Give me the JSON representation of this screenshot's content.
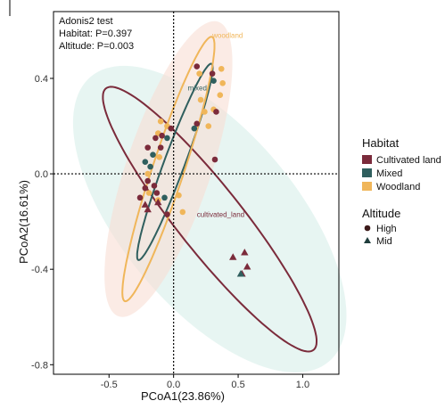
{
  "chart_data": {
    "type": "scatter",
    "xlabel": "PCoA1(23.86%)",
    "ylabel": "PCoA2(16.61%)",
    "xlim": [
      -0.93,
      1.28
    ],
    "ylim": [
      -0.84,
      0.68
    ],
    "x_ticks": [
      -0.5,
      0.0,
      0.5,
      1.0
    ],
    "y_ticks": [
      0.4,
      0.0,
      -0.4,
      -0.8
    ],
    "x_tick_labels": [
      "-0.5",
      "0.0",
      "0.5",
      "1.0"
    ],
    "y_tick_labels": [
      "0.4",
      "0.0",
      "-0.4",
      "-0.8"
    ],
    "annotations": {
      "line1": "Adonis2 test",
      "line2": "Habitat: P=0.397",
      "line3": "Altitude: P=0.003"
    },
    "legend_placement": "right",
    "legend": {
      "habitat_title": "Habitat",
      "habitat_items": [
        {
          "label": "Cultivated land",
          "color": "#7b2b3b"
        },
        {
          "label": "Mixed",
          "color": "#2f5f5e"
        },
        {
          "label": "Woodland",
          "color": "#f0b65a"
        }
      ],
      "altitude_title": "Altitude",
      "altitude_items": [
        {
          "label": "High",
          "shape": "circle"
        },
        {
          "label": "Mid",
          "shape": "triangle"
        }
      ]
    },
    "ellipse_labels": {
      "woodland": "woodland",
      "mixed": "mixed",
      "cultivated": "cultivated_land"
    },
    "ellipses": [
      {
        "group": "Cultivated land",
        "color": "#7b2b3b",
        "fill": "#d7eee9",
        "cx": 0.28,
        "cy": -0.19,
        "rx": 0.98,
        "ry": 0.18,
        "angle_deg": -33
      },
      {
        "group": "Mixed",
        "color": "#2f5f5e",
        "fill": null,
        "cx": 0.01,
        "cy": 0.05,
        "rx": 0.5,
        "ry": 0.07,
        "angle_deg": 55
      },
      {
        "group": "Woodland",
        "color": "#f0b65a",
        "fill": "#f9ddd3",
        "cx": -0.04,
        "cy": 0.02,
        "rx": 0.65,
        "ry": 0.11,
        "angle_deg": 58
      }
    ],
    "grid": false,
    "reference_lines": {
      "x": 0,
      "y": 0,
      "style": "dotted"
    },
    "points": [
      {
        "x": 0.18,
        "y": 0.45,
        "habitat": "Cultivated land",
        "altitude": "High"
      },
      {
        "x": 0.3,
        "y": 0.42,
        "habitat": "Cultivated land",
        "altitude": "High"
      },
      {
        "x": 0.37,
        "y": 0.44,
        "habitat": "Woodland",
        "altitude": "High"
      },
      {
        "x": 0.31,
        "y": 0.39,
        "habitat": "Mixed",
        "altitude": "High"
      },
      {
        "x": 0.2,
        "y": 0.42,
        "habitat": "Woodland",
        "altitude": "High"
      },
      {
        "x": 0.38,
        "y": 0.38,
        "habitat": "Woodland",
        "altitude": "High"
      },
      {
        "x": 0.36,
        "y": 0.33,
        "habitat": "Woodland",
        "altitude": "High"
      },
      {
        "x": 0.21,
        "y": 0.31,
        "habitat": "Woodland",
        "altitude": "High"
      },
      {
        "x": 0.24,
        "y": 0.26,
        "habitat": "Woodland",
        "altitude": "High"
      },
      {
        "x": 0.31,
        "y": 0.27,
        "habitat": "Woodland",
        "altitude": "High"
      },
      {
        "x": 0.33,
        "y": 0.26,
        "habitat": "Cultivated land",
        "altitude": "High"
      },
      {
        "x": 0.27,
        "y": 0.2,
        "habitat": "Woodland",
        "altitude": "High"
      },
      {
        "x": 0.18,
        "y": 0.21,
        "habitat": "Cultivated land",
        "altitude": "High"
      },
      {
        "x": 0.16,
        "y": 0.19,
        "habitat": "Mixed",
        "altitude": "High"
      },
      {
        "x": 0.32,
        "y": 0.06,
        "habitat": "Cultivated land",
        "altitude": "High"
      },
      {
        "x": -0.1,
        "y": 0.22,
        "habitat": "Woodland",
        "altitude": "High"
      },
      {
        "x": -0.05,
        "y": 0.2,
        "habitat": "Woodland",
        "altitude": "High"
      },
      {
        "x": -0.02,
        "y": 0.19,
        "habitat": "Cultivated land",
        "altitude": "High"
      },
      {
        "x": -0.12,
        "y": 0.17,
        "habitat": "Woodland",
        "altitude": "High"
      },
      {
        "x": -0.14,
        "y": 0.15,
        "habitat": "Cultivated land",
        "altitude": "High"
      },
      {
        "x": -0.09,
        "y": 0.16,
        "habitat": "Cultivated land",
        "altitude": "High"
      },
      {
        "x": -0.05,
        "y": 0.15,
        "habitat": "Mixed",
        "altitude": "High"
      },
      {
        "x": -0.2,
        "y": 0.11,
        "habitat": "Cultivated land",
        "altitude": "High"
      },
      {
        "x": -0.1,
        "y": 0.11,
        "habitat": "Cultivated land",
        "altitude": "High"
      },
      {
        "x": -0.16,
        "y": 0.08,
        "habitat": "Mixed",
        "altitude": "High"
      },
      {
        "x": -0.11,
        "y": 0.07,
        "habitat": "Woodland",
        "altitude": "High"
      },
      {
        "x": -0.22,
        "y": 0.05,
        "habitat": "Mixed",
        "altitude": "High"
      },
      {
        "x": -0.18,
        "y": 0.03,
        "habitat": "Mixed",
        "altitude": "High"
      },
      {
        "x": -0.2,
        "y": 0.0,
        "habitat": "Woodland",
        "altitude": "High"
      },
      {
        "x": -0.2,
        "y": -0.03,
        "habitat": "Cultivated land",
        "altitude": "High"
      },
      {
        "x": -0.15,
        "y": -0.05,
        "habitat": "Cultivated land",
        "altitude": "High"
      },
      {
        "x": -0.22,
        "y": -0.06,
        "habitat": "Cultivated land",
        "altitude": "High"
      },
      {
        "x": -0.19,
        "y": -0.08,
        "habitat": "Woodland",
        "altitude": "High"
      },
      {
        "x": -0.13,
        "y": -0.08,
        "habitat": "Cultivated land",
        "altitude": "High"
      },
      {
        "x": -0.26,
        "y": -0.1,
        "habitat": "Cultivated land",
        "altitude": "High"
      },
      {
        "x": -0.12,
        "y": -0.11,
        "habitat": "Woodland",
        "altitude": "High"
      },
      {
        "x": -0.07,
        "y": -0.1,
        "habitat": "Mixed",
        "altitude": "High"
      },
      {
        "x": 0.04,
        "y": -0.09,
        "habitat": "Woodland",
        "altitude": "High"
      },
      {
        "x": 0.07,
        "y": -0.16,
        "habitat": "Woodland",
        "altitude": "High"
      },
      {
        "x": -0.05,
        "y": -0.17,
        "habitat": "Cultivated land",
        "altitude": "High"
      },
      {
        "x": -0.22,
        "y": -0.13,
        "habitat": "Cultivated land",
        "altitude": "Mid"
      },
      {
        "x": -0.2,
        "y": -0.15,
        "habitat": "Cultivated land",
        "altitude": "Mid"
      },
      {
        "x": -0.12,
        "y": -0.12,
        "habitat": "Cultivated land",
        "altitude": "Mid"
      },
      {
        "x": 0.46,
        "y": -0.35,
        "habitat": "Cultivated land",
        "altitude": "Mid"
      },
      {
        "x": 0.55,
        "y": -0.33,
        "habitat": "Cultivated land",
        "altitude": "Mid"
      },
      {
        "x": 0.57,
        "y": -0.39,
        "habitat": "Cultivated land",
        "altitude": "Mid"
      },
      {
        "x": 0.53,
        "y": -0.42,
        "habitat": "Cultivated land",
        "altitude": "Mid"
      },
      {
        "x": 0.52,
        "y": -0.42,
        "habitat": "Mixed",
        "altitude": "Mid"
      }
    ]
  }
}
